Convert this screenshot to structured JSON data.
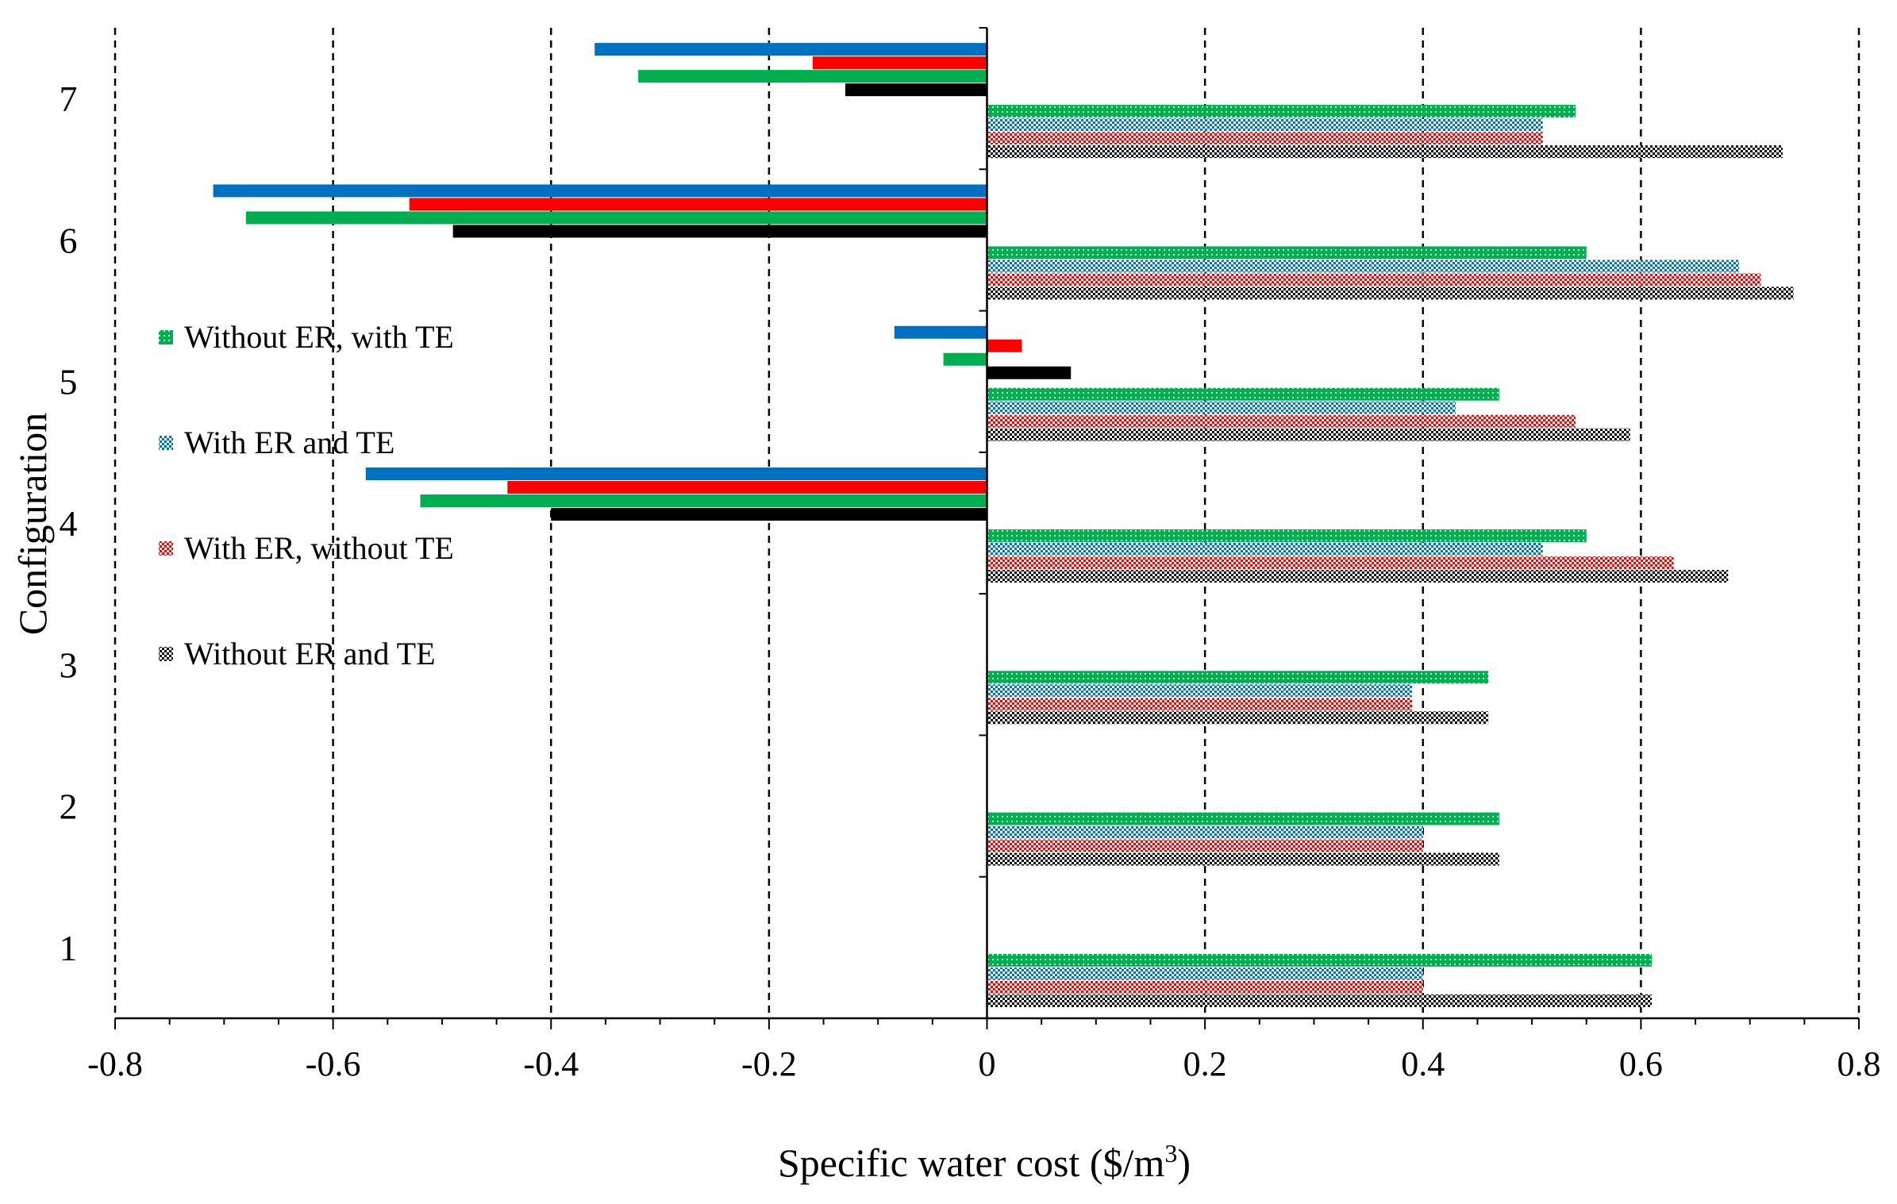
{
  "chart_data": {
    "type": "bar",
    "orientation": "horizontal",
    "title": "",
    "xlabel": "Specific water cost ($/m",
    "xlabel_superscript": "3",
    "xlabel_suffix": ")",
    "ylabel": "Configuration",
    "xlim": [
      -0.8,
      0.8
    ],
    "xticks": [
      -0.8,
      -0.6,
      -0.4,
      -0.2,
      0,
      0.2,
      0.4,
      0.6,
      0.8
    ],
    "xtick_labels": [
      "-0.8",
      "-0.6",
      "-0.4",
      "-0.2",
      "0",
      "0.2",
      "0.4",
      "0.6",
      "0.8"
    ],
    "vertical_gridlines": "dashed",
    "categories": [
      "1",
      "2",
      "3",
      "4",
      "5",
      "6",
      "7"
    ],
    "series": [
      {
        "name": "Without ER, with TE",
        "color": "#00b050",
        "pattern": "dotted",
        "values": [
          0.61,
          0.47,
          0.46,
          0.55,
          0.47,
          0.55,
          0.54
        ]
      },
      {
        "name": "With ER and TE",
        "color": "#0070c0",
        "pattern": "checkered",
        "values": [
          0.4,
          0.4,
          0.39,
          0.51,
          0.43,
          0.69,
          0.51
        ]
      },
      {
        "name": "With ER, without TE",
        "color": "#ff0000",
        "pattern": "checkered",
        "values": [
          0.4,
          0.4,
          0.39,
          0.63,
          0.54,
          0.71,
          0.51
        ]
      },
      {
        "name": "Without ER and TE",
        "color": "#000000",
        "pattern": "checkered",
        "values": [
          0.61,
          0.47,
          0.46,
          0.68,
          0.59,
          0.74,
          0.73
        ]
      }
    ],
    "difference_series": [
      {
        "name": "With ER and TE",
        "color": "#0070c0",
        "values": [
          null,
          null,
          null,
          -0.57,
          -0.085,
          -0.71,
          -0.36
        ]
      },
      {
        "name": "With ER, without TE",
        "color": "#ff0000",
        "values": [
          null,
          null,
          null,
          -0.44,
          0.032,
          -0.53,
          -0.16
        ]
      },
      {
        "name": "Without ER, with TE",
        "color": "#00b050",
        "values": [
          null,
          null,
          null,
          -0.52,
          -0.04,
          -0.68,
          -0.32
        ]
      },
      {
        "name": "Without ER and TE",
        "color": "#000000",
        "values": [
          null,
          null,
          null,
          -0.4,
          0.077,
          -0.49,
          -0.13
        ]
      }
    ],
    "legend": {
      "placement": "left-center",
      "entries": [
        {
          "label": "Without ER, with TE",
          "color": "#00b050",
          "pattern": "dotted"
        },
        {
          "label": "With ER and TE",
          "color": "#0070c0",
          "pattern": "checkered"
        },
        {
          "label": "With ER, without TE",
          "color": "#ff0000",
          "pattern": "checkered"
        },
        {
          "label": "Without ER and TE",
          "color": "#000000",
          "pattern": "checkered"
        }
      ]
    }
  }
}
